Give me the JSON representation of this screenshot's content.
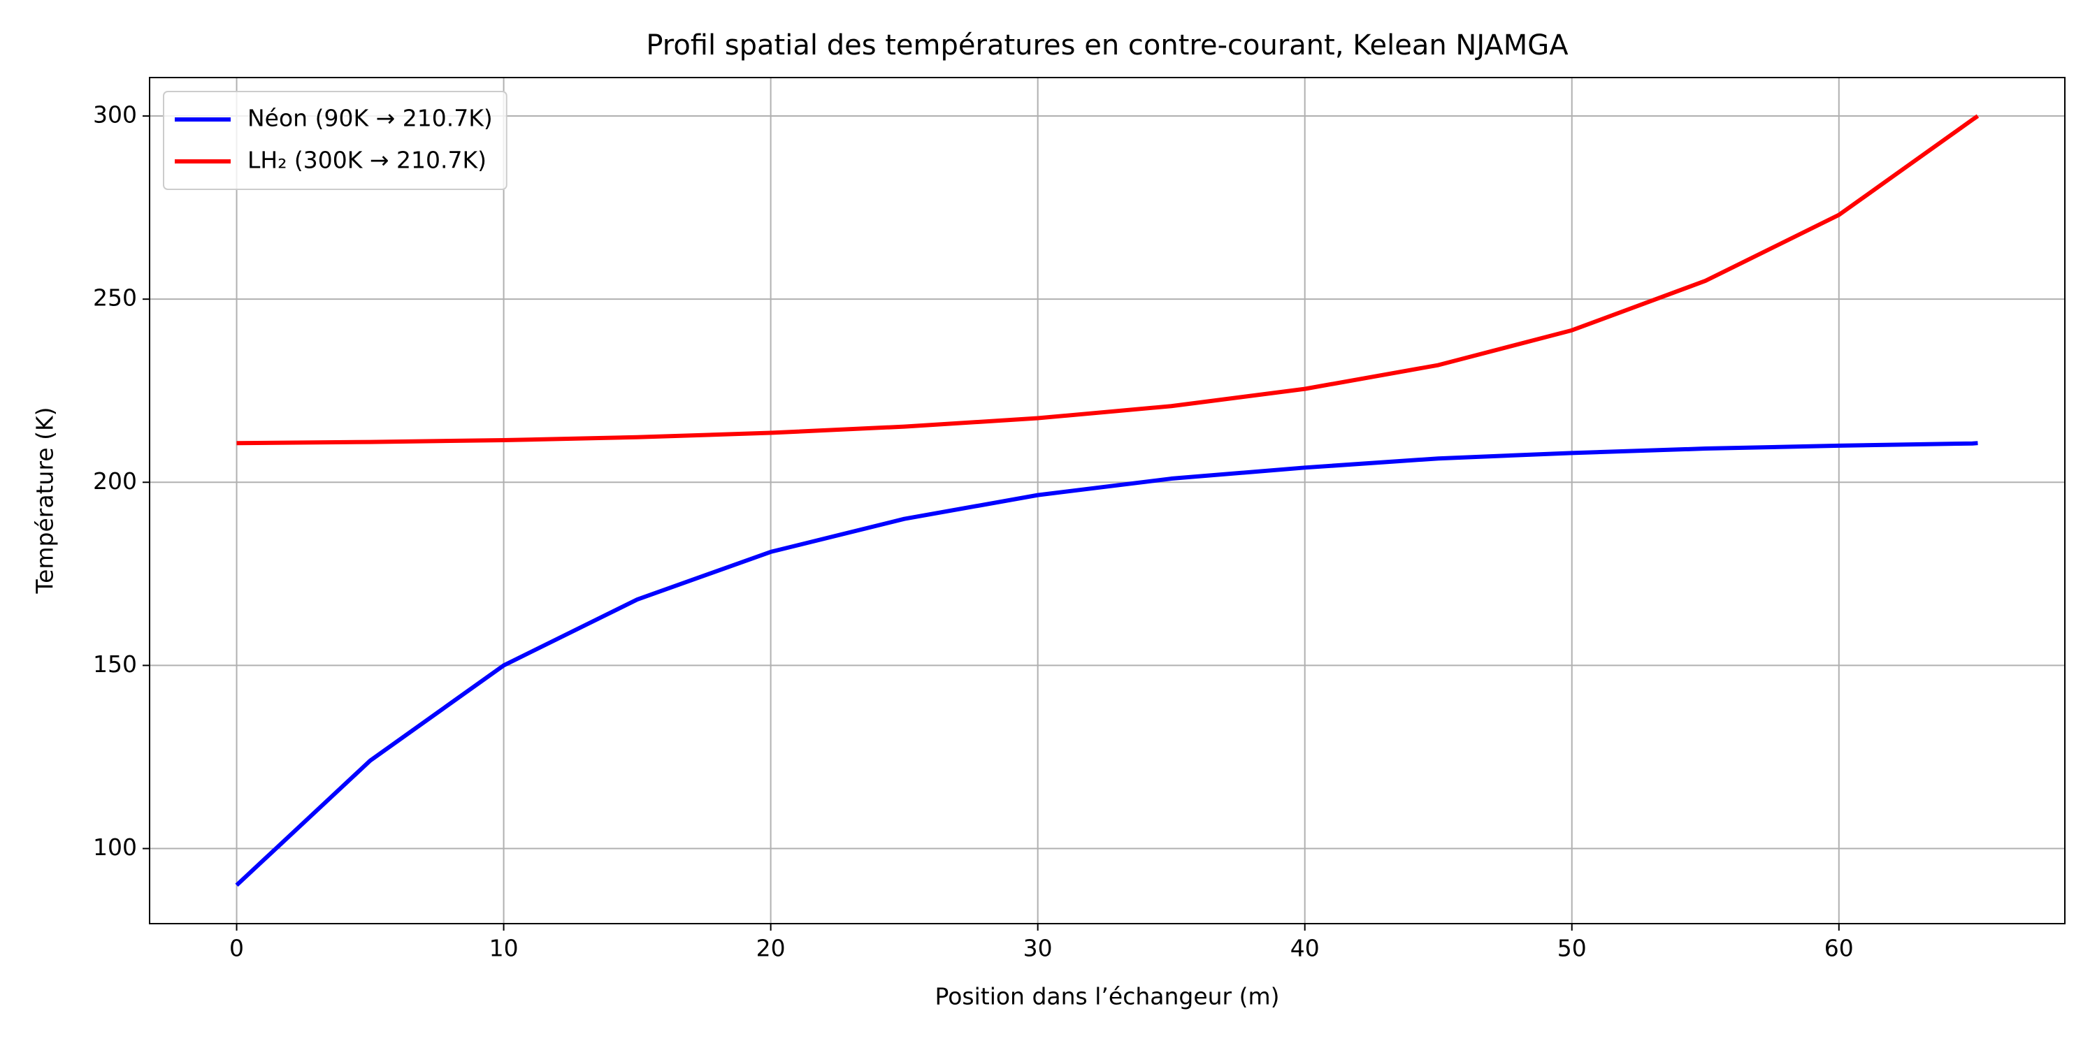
{
  "chart_data": {
    "type": "line",
    "title": "Profil spatial des températures en contre-courant, Kelean NJAMGA",
    "x_label": "Position dans l’échangeur (m)",
    "y_label": "Température (K)",
    "x": [
      0,
      5,
      10,
      15,
      20,
      25,
      30,
      35,
      40,
      45,
      50,
      55,
      60,
      65,
      65.2
    ],
    "series": [
      {
        "name": "Néon (90K → 210.7K)",
        "color": "#0000ff",
        "values": [
          90,
          124,
          150,
          168,
          181,
          190,
          196.5,
          201,
          204,
          206.5,
          208,
          209.2,
          210,
          210.6,
          210.7
        ]
      },
      {
        "name": "LH₂ (300K → 210.7K)",
        "color": "#ff0000",
        "values": [
          210.7,
          211,
          211.5,
          212.3,
          213.5,
          215.2,
          217.5,
          220.8,
          225.5,
          232,
          241.5,
          255,
          273,
          299,
          300
        ]
      }
    ],
    "xlim": [
      -3.26,
      68.46
    ],
    "ylim": [
      79.5,
      310.5
    ],
    "xticks": [
      0,
      10,
      20,
      30,
      40,
      50,
      60
    ],
    "yticks": [
      100,
      150,
      200,
      250,
      300
    ],
    "grid": true,
    "legend": "upper left"
  }
}
